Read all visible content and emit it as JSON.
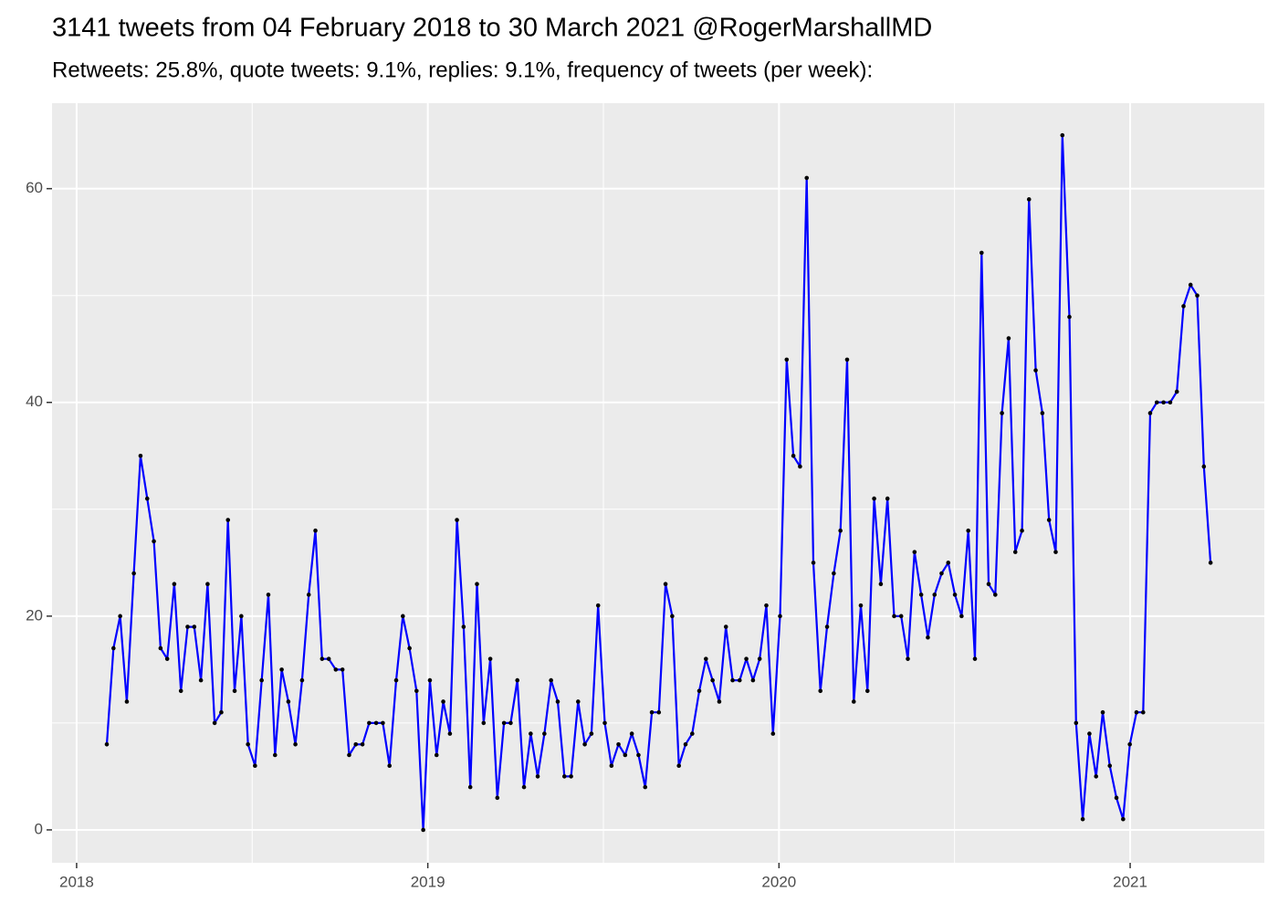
{
  "chart_data": {
    "type": "line",
    "title": "3141 tweets from 04 February 2018 to 30 March 2021 @RogerMarshallMD",
    "subtitle": "Retweets: 25.8%, quote tweets: 9.1%, replies: 9.1%, frequency of tweets (per week):",
    "x": [
      2018.086,
      2018.105,
      2018.124,
      2018.143,
      2018.163,
      2018.182,
      2018.201,
      2018.22,
      2018.239,
      2018.258,
      2018.278,
      2018.297,
      2018.316,
      2018.335,
      2018.354,
      2018.373,
      2018.393,
      2018.412,
      2018.431,
      2018.45,
      2018.469,
      2018.488,
      2018.508,
      2018.527,
      2018.546,
      2018.565,
      2018.584,
      2018.603,
      2018.623,
      2018.642,
      2018.661,
      2018.68,
      2018.699,
      2018.718,
      2018.738,
      2018.757,
      2018.776,
      2018.795,
      2018.814,
      2018.833,
      2018.853,
      2018.872,
      2018.891,
      2018.91,
      2018.929,
      2018.948,
      2018.968,
      2018.987,
      2019.006,
      2019.025,
      2019.044,
      2019.063,
      2019.083,
      2019.102,
      2019.121,
      2019.14,
      2019.159,
      2019.178,
      2019.198,
      2019.217,
      2019.236,
      2019.255,
      2019.274,
      2019.293,
      2019.313,
      2019.332,
      2019.351,
      2019.37,
      2019.389,
      2019.408,
      2019.428,
      2019.447,
      2019.466,
      2019.485,
      2019.504,
      2019.523,
      2019.543,
      2019.562,
      2019.581,
      2019.6,
      2019.619,
      2019.638,
      2019.658,
      2019.677,
      2019.696,
      2019.715,
      2019.734,
      2019.753,
      2019.773,
      2019.792,
      2019.811,
      2019.83,
      2019.849,
      2019.868,
      2019.888,
      2019.907,
      2019.926,
      2019.945,
      2019.964,
      2019.983,
      2020.003,
      2020.022,
      2020.041,
      2020.06,
      2020.079,
      2020.098,
      2020.118,
      2020.137,
      2020.156,
      2020.175,
      2020.194,
      2020.213,
      2020.233,
      2020.252,
      2020.271,
      2020.29,
      2020.309,
      2020.328,
      2020.348,
      2020.367,
      2020.386,
      2020.405,
      2020.424,
      2020.443,
      2020.463,
      2020.482,
      2020.501,
      2020.52,
      2020.539,
      2020.558,
      2020.577,
      2020.597,
      2020.616,
      2020.635,
      2020.654,
      2020.673,
      2020.692,
      2020.712,
      2020.731,
      2020.75,
      2020.769,
      2020.788,
      2020.807,
      2020.827,
      2020.846,
      2020.865,
      2020.884,
      2020.903,
      2020.922,
      2020.942,
      2020.961,
      2020.98,
      2020.999,
      2021.018,
      2021.037,
      2021.057,
      2021.076,
      2021.095,
      2021.114,
      2021.133,
      2021.152,
      2021.172,
      2021.191,
      2021.21,
      2021.229
    ],
    "series": [
      {
        "color": "#0000ff",
        "marker_color": "#000000",
        "values": [
          8,
          17,
          20,
          12,
          24,
          35,
          31,
          27,
          17,
          16,
          23,
          13,
          19,
          19,
          14,
          23,
          10,
          11,
          29,
          13,
          20,
          8,
          6,
          14,
          22,
          7,
          15,
          12,
          8,
          14,
          22,
          28,
          16,
          16,
          15,
          15,
          7,
          8,
          8,
          10,
          10,
          10,
          6,
          14,
          20,
          17,
          13,
          0,
          14,
          7,
          12,
          9,
          29,
          19,
          4,
          23,
          10,
          16,
          3,
          10,
          10,
          14,
          4,
          9,
          5,
          9,
          14,
          12,
          5,
          5,
          12,
          8,
          9,
          21,
          10,
          6,
          8,
          7,
          9,
          7,
          4,
          11,
          11,
          23,
          20,
          6,
          8,
          9,
          13,
          16,
          14,
          12,
          19,
          14,
          14,
          16,
          14,
          16,
          21,
          9,
          20,
          44,
          35,
          34,
          61,
          25,
          13,
          19,
          24,
          28,
          44,
          12,
          21,
          13,
          31,
          23,
          31,
          20,
          20,
          16,
          26,
          22,
          18,
          22,
          24,
          25,
          22,
          20,
          28,
          16,
          54,
          23,
          22,
          39,
          46,
          26,
          28,
          59,
          43,
          39,
          29,
          26,
          65,
          48,
          10,
          1,
          9,
          5,
          11,
          6,
          3,
          1,
          8,
          11,
          11,
          39,
          40,
          40,
          40,
          41,
          49,
          51,
          50,
          34,
          25
        ]
      }
    ],
    "xlim": [
      2017.93,
      2021.382
    ],
    "ylim": [
      -3.08,
      68.0
    ],
    "xticks": [
      2018,
      2019,
      2020,
      2021
    ],
    "yticks": [
      0,
      20,
      40,
      60
    ],
    "grid": true,
    "background": "#ebebeb"
  }
}
